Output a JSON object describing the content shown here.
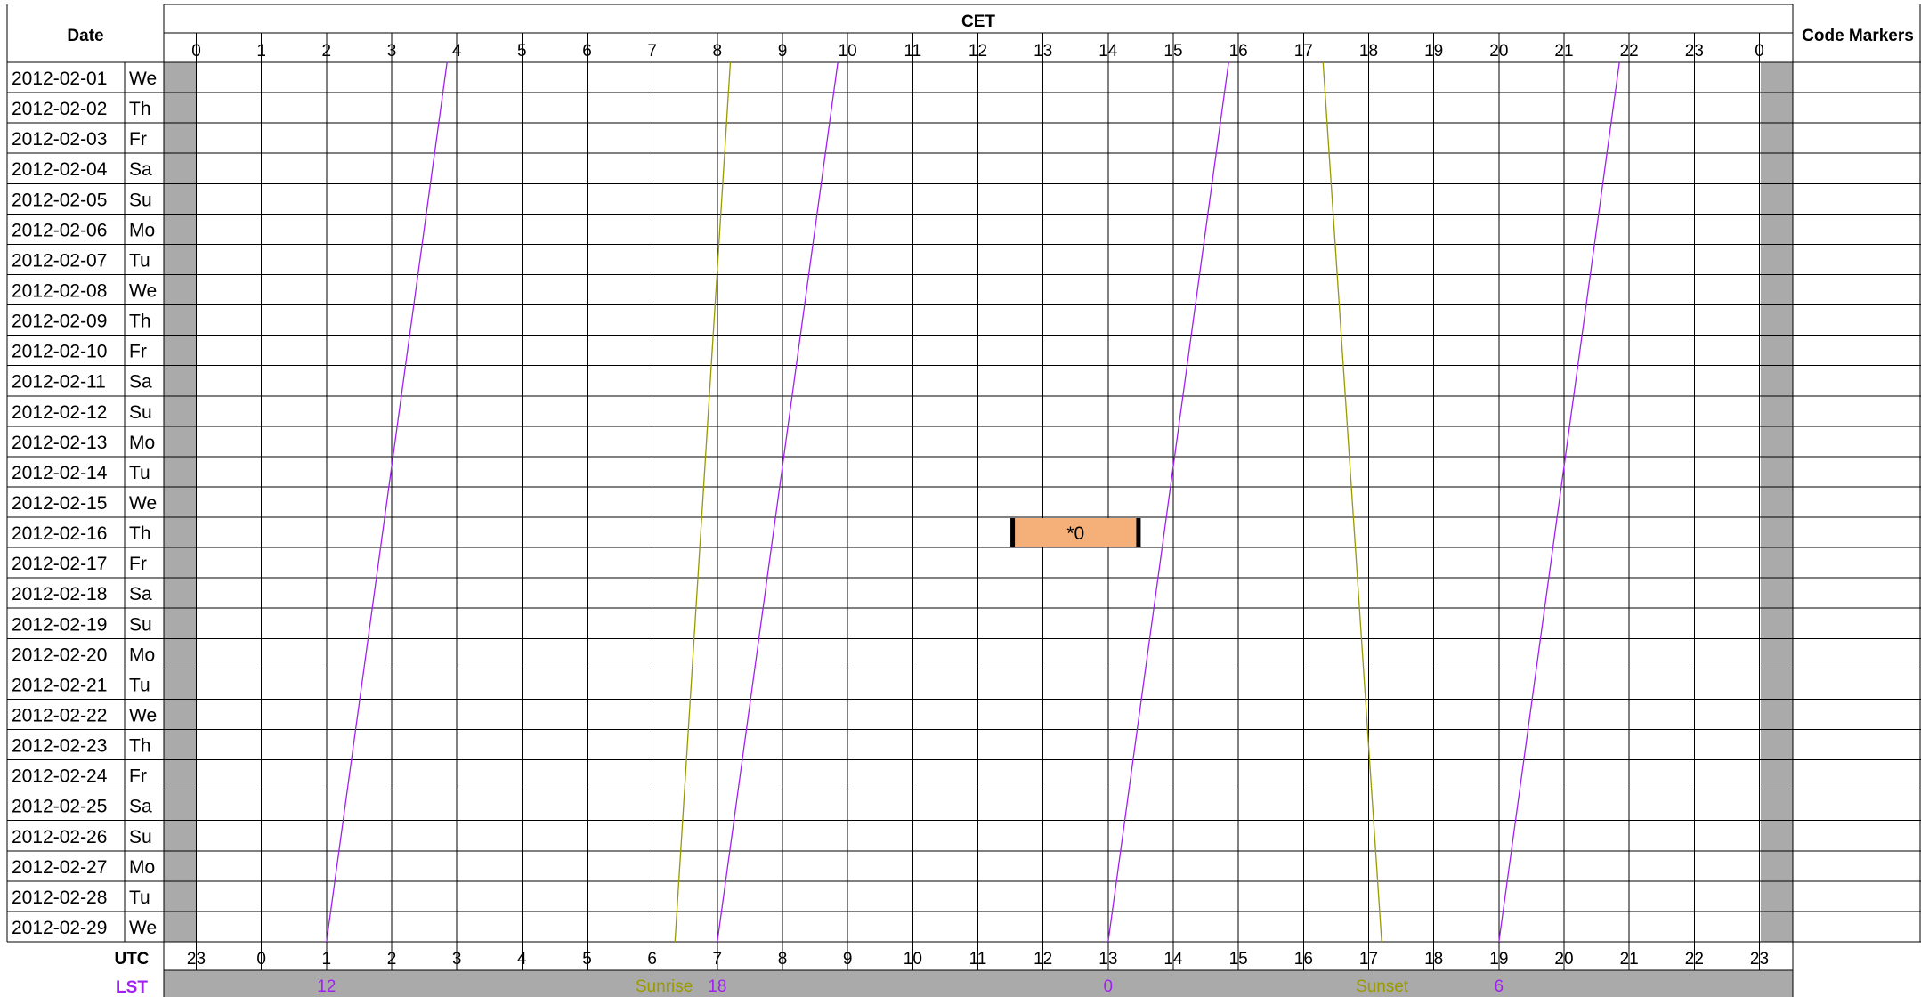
{
  "chart_data": {
    "type": "schedule",
    "headers": {
      "date": "Date",
      "top_axis": "CET",
      "right": "Code Markers",
      "bottom_axis": "UTC",
      "lst": "LST"
    },
    "cet_ticks": [
      "0",
      "1",
      "2",
      "3",
      "4",
      "5",
      "6",
      "7",
      "8",
      "9",
      "10",
      "11",
      "12",
      "13",
      "14",
      "15",
      "16",
      "17",
      "18",
      "19",
      "20",
      "21",
      "22",
      "23",
      "0"
    ],
    "utc_ticks": [
      "23",
      "0",
      "1",
      "2",
      "3",
      "4",
      "5",
      "6",
      "7",
      "8",
      "9",
      "10",
      "11",
      "12",
      "13",
      "14",
      "15",
      "16",
      "17",
      "18",
      "19",
      "20",
      "21",
      "22",
      "23"
    ],
    "rows": [
      {
        "date": "2012-02-01",
        "day": "We"
      },
      {
        "date": "2012-02-02",
        "day": "Th"
      },
      {
        "date": "2012-02-03",
        "day": "Fr"
      },
      {
        "date": "2012-02-04",
        "day": "Sa"
      },
      {
        "date": "2012-02-05",
        "day": "Su"
      },
      {
        "date": "2012-02-06",
        "day": "Mo"
      },
      {
        "date": "2012-02-07",
        "day": "Tu"
      },
      {
        "date": "2012-02-08",
        "day": "We"
      },
      {
        "date": "2012-02-09",
        "day": "Th"
      },
      {
        "date": "2012-02-10",
        "day": "Fr"
      },
      {
        "date": "2012-02-11",
        "day": "Sa"
      },
      {
        "date": "2012-02-12",
        "day": "Su"
      },
      {
        "date": "2012-02-13",
        "day": "Mo"
      },
      {
        "date": "2012-02-14",
        "day": "Tu"
      },
      {
        "date": "2012-02-15",
        "day": "We"
      },
      {
        "date": "2012-02-16",
        "day": "Th"
      },
      {
        "date": "2012-02-17",
        "day": "Fr"
      },
      {
        "date": "2012-02-18",
        "day": "Sa"
      },
      {
        "date": "2012-02-19",
        "day": "Su"
      },
      {
        "date": "2012-02-20",
        "day": "Mo"
      },
      {
        "date": "2012-02-21",
        "day": "Tu"
      },
      {
        "date": "2012-02-22",
        "day": "We"
      },
      {
        "date": "2012-02-23",
        "day": "Th"
      },
      {
        "date": "2012-02-24",
        "day": "Fr"
      },
      {
        "date": "2012-02-25",
        "day": "Sa"
      },
      {
        "date": "2012-02-26",
        "day": "Su"
      },
      {
        "date": "2012-02-27",
        "day": "Mo"
      },
      {
        "date": "2012-02-28",
        "day": "Tu"
      },
      {
        "date": "2012-02-29",
        "day": "We"
      }
    ],
    "lst_lines": [
      {
        "label": "12",
        "cet_start": 3.85,
        "cet_end": 2.0
      },
      {
        "label": "18",
        "cet_start": 9.85,
        "cet_end": 8.0
      },
      {
        "label": "0",
        "cet_start": 15.85,
        "cet_end": 14.0
      },
      {
        "label": "6",
        "cet_start": 21.85,
        "cet_end": 20.0
      }
    ],
    "sunrise": {
      "label": "Sunrise",
      "cet_start": 8.2,
      "cet_end": 7.35
    },
    "sunset": {
      "label": "Sunset",
      "cet_start": 17.3,
      "cet_end": 18.2
    },
    "blocks": [
      {
        "date": "2012-02-16",
        "cet_start": 12.5,
        "cet_end": 14.5,
        "label": "*0"
      }
    ],
    "colors": {
      "lst": "#a020f0",
      "sun": "#999900",
      "block": "#f5b07a",
      "shade": "#aaaaaa",
      "grid": "#000000"
    }
  }
}
